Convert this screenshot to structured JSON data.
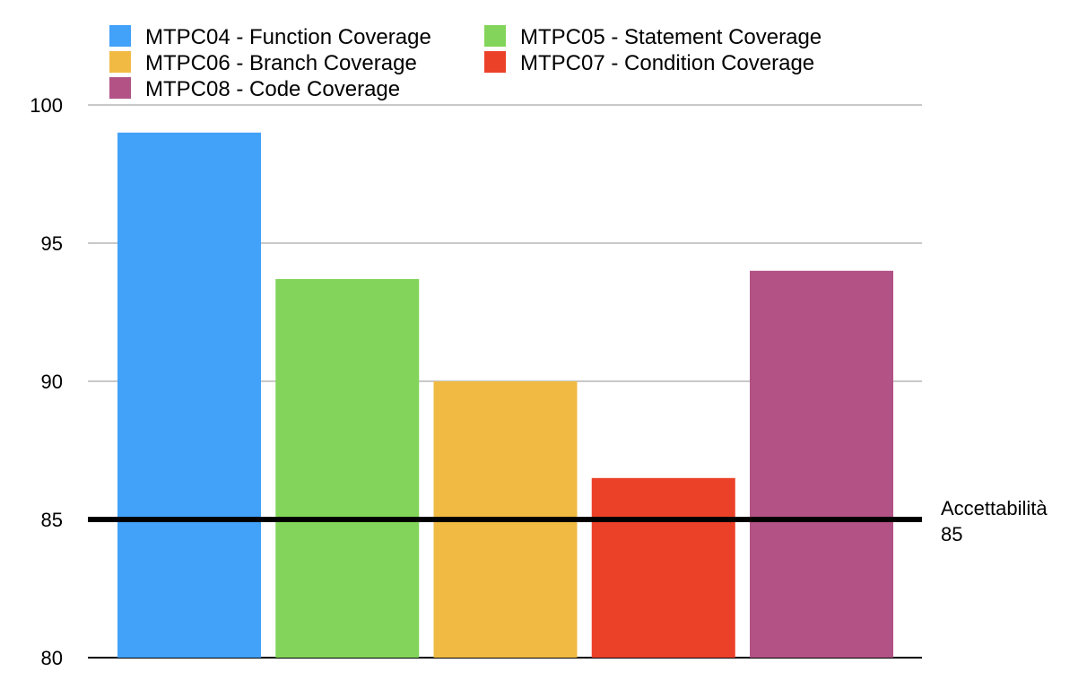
{
  "chart_data": {
    "type": "bar",
    "title": "",
    "xlabel": "",
    "ylabel": "",
    "ylim": [
      80,
      100
    ],
    "y_ticks": [
      80,
      85,
      90,
      95,
      100
    ],
    "grid": true,
    "legend_position": "top-left",
    "series": [
      {
        "name": "MTPC04 - Function Coverage",
        "value": 99,
        "color": "#42a1f8"
      },
      {
        "name": "MTPC05 - Statement Coverage",
        "value": 93.7,
        "color": "#82d55a"
      },
      {
        "name": "MTPC06 - Branch Coverage",
        "value": 90,
        "color": "#f0ba43"
      },
      {
        "name": "MTPC07 - Condition Coverage",
        "value": 86.5,
        "color": "#eb4129"
      },
      {
        "name": "MTPC08 - Code Coverage",
        "value": 94,
        "color": "#b25285"
      }
    ],
    "reference_line": {
      "value": 85,
      "label_line1": "Accettabilità",
      "label_line2": "85",
      "color": "#000000"
    }
  }
}
